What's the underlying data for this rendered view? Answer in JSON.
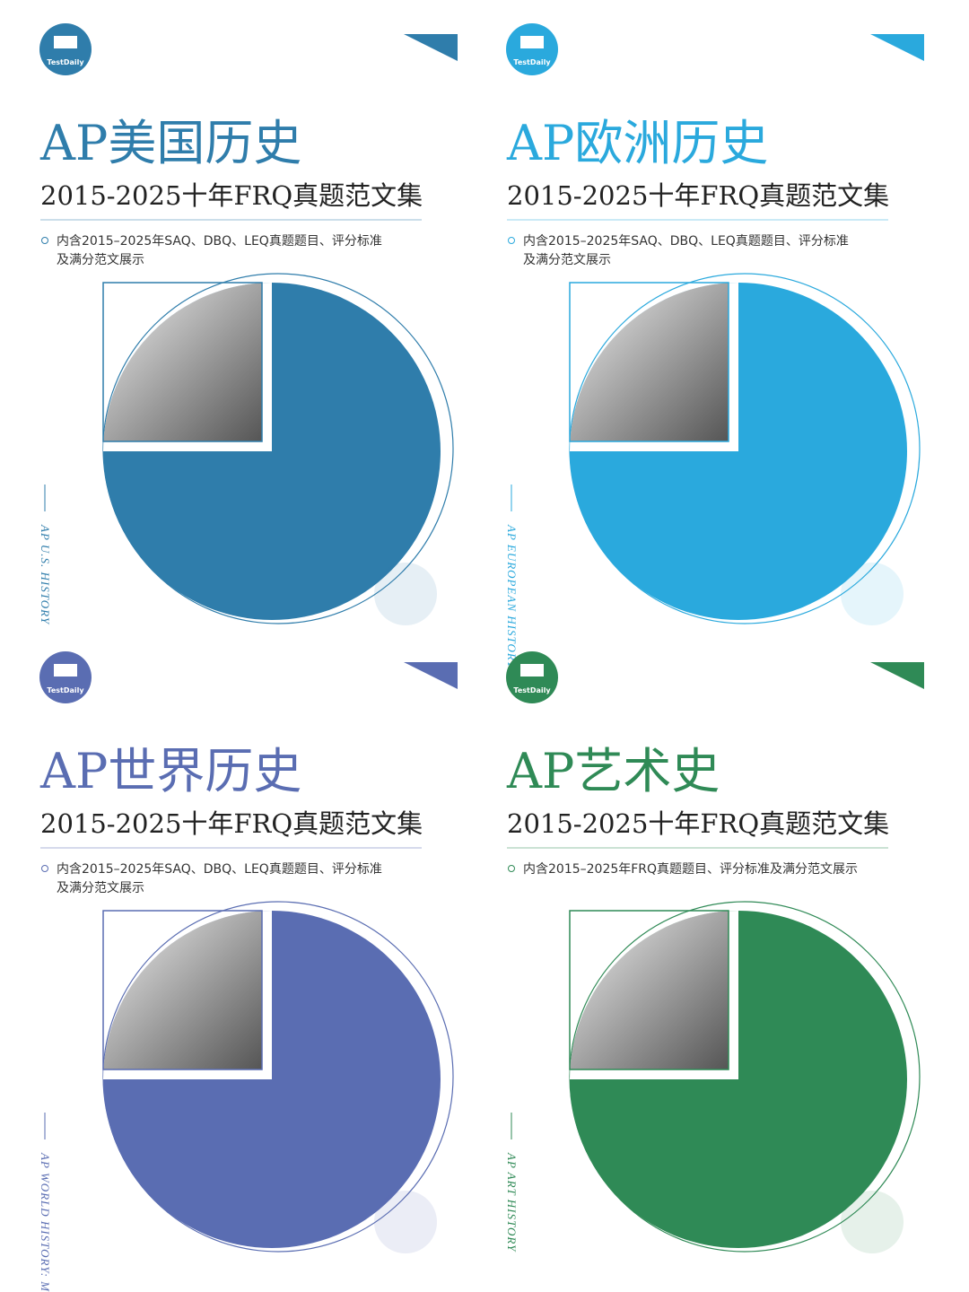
{
  "cards": [
    {
      "logo": "TestDaily",
      "title": "AP美国历史",
      "subtitle": "2015-2025十年FRQ真题范文集",
      "bullet": [
        "内含2015–2025年SAQ、DBQ、LEQ真题题目、评分标准",
        "及满分范文展示"
      ],
      "side_label": "AP U.S. HISTORY"
    },
    {
      "logo": "TestDaily",
      "title": "AP欧洲历史",
      "subtitle": "2015-2025十年FRQ真题范文集",
      "bullet": [
        "内含2015–2025年SAQ、DBQ、LEQ真题题目、评分标准",
        "及满分范文展示"
      ],
      "side_label": "AP EUROPEAN HISTORY"
    },
    {
      "logo": "TestDaily",
      "title": "AP世界历史",
      "subtitle": "2015-2025十年FRQ真题范文集",
      "bullet": [
        "内含2015–2025年SAQ、DBQ、LEQ真题题目、评分标准",
        "及满分范文展示"
      ],
      "side_label": "AP WORLD HISTORY: MODERN"
    },
    {
      "logo": "TestDaily",
      "title": "AP艺术史",
      "subtitle": "2015-2025十年FRQ真题范文集",
      "bullet": [
        "内含2015–2025年FRQ真题题目、评分标准及满分范文展示"
      ],
      "side_label": "AP ART HISTORY"
    }
  ]
}
